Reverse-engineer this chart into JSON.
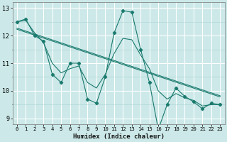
{
  "xlabel": "Humidex (Indice chaleur)",
  "x": [
    0,
    1,
    2,
    3,
    4,
    5,
    6,
    7,
    8,
    9,
    10,
    11,
    12,
    13,
    14,
    15,
    16,
    17,
    18,
    19,
    20,
    21,
    22,
    23
  ],
  "y_main": [
    12.5,
    12.6,
    12.0,
    11.8,
    10.6,
    10.3,
    11.0,
    11.0,
    9.7,
    9.55,
    10.5,
    12.1,
    12.9,
    12.85,
    11.5,
    10.3,
    8.6,
    9.5,
    10.1,
    9.8,
    9.6,
    9.35,
    9.55,
    9.5
  ],
  "y_smooth": [
    12.5,
    12.55,
    12.1,
    11.75,
    11.0,
    10.65,
    10.8,
    10.9,
    10.3,
    10.1,
    10.6,
    11.35,
    11.9,
    11.85,
    11.3,
    10.8,
    10.0,
    9.7,
    9.9,
    9.75,
    9.65,
    9.45,
    9.5,
    9.5
  ],
  "trend_x": [
    0,
    23
  ],
  "trend_y": [
    12.25,
    9.8
  ],
  "bg_color": "#cce8e8",
  "line_color": "#1a7a6e",
  "grid_major_color": "#ffffff",
  "grid_minor_color": "#aad4d4",
  "ylim": [
    8.8,
    13.2
  ],
  "xlim": [
    -0.5,
    23.5
  ],
  "yticks": [
    9,
    10,
    11,
    12,
    13
  ],
  "xticks": [
    0,
    1,
    2,
    3,
    4,
    5,
    6,
    7,
    8,
    9,
    10,
    11,
    12,
    13,
    14,
    15,
    16,
    17,
    18,
    19,
    20,
    21,
    22,
    23
  ]
}
